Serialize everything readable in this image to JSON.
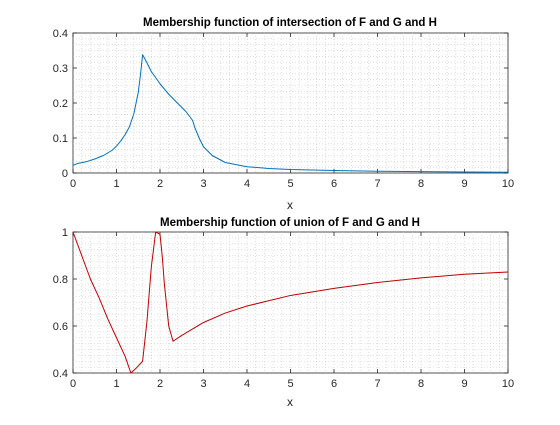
{
  "chart_data": [
    {
      "type": "line",
      "title": "Membership function of intersection of F and G and H",
      "xlabel": "x",
      "ylabel": "",
      "xlim": [
        0,
        10
      ],
      "ylim": [
        0,
        0.4
      ],
      "xticks": [
        "0",
        "1",
        "2",
        "3",
        "4",
        "5",
        "6",
        "7",
        "8",
        "9",
        "10"
      ],
      "yticks": [
        "0",
        "0.1",
        "0.2",
        "0.3",
        "0.4"
      ],
      "grid": "minor-dotted",
      "series": [
        {
          "color": "#0072bd",
          "x": [
            0,
            0.1,
            0.3,
            0.5,
            0.7,
            0.9,
            1.0,
            1.1,
            1.2,
            1.3,
            1.4,
            1.5,
            1.55,
            1.6,
            1.7,
            1.8,
            2.0,
            2.2,
            2.4,
            2.6,
            2.75,
            2.8,
            2.9,
            3.0,
            3.2,
            3.5,
            4.0,
            4.5,
            5.0,
            6.0,
            7.0,
            8.0,
            9.0,
            10.0
          ],
          "y": [
            0.022,
            0.027,
            0.032,
            0.04,
            0.05,
            0.065,
            0.077,
            0.092,
            0.11,
            0.133,
            0.17,
            0.23,
            0.28,
            0.338,
            0.315,
            0.29,
            0.255,
            0.225,
            0.2,
            0.175,
            0.15,
            0.13,
            0.1,
            0.075,
            0.05,
            0.03,
            0.018,
            0.013,
            0.01,
            0.007,
            0.005,
            0.004,
            0.003,
            0.002
          ]
        }
      ]
    },
    {
      "type": "line",
      "title": "Membership function of union of F and G and H",
      "xlabel": "x",
      "ylabel": "",
      "xlim": [
        0,
        10
      ],
      "ylim": [
        0.4,
        1
      ],
      "xticks": [
        "0",
        "1",
        "2",
        "3",
        "4",
        "5",
        "6",
        "7",
        "8",
        "9",
        "10"
      ],
      "yticks": [
        "0.4",
        "0.6",
        "0.8",
        "1"
      ],
      "grid": "minor-dotted",
      "series": [
        {
          "color": "#c00000",
          "x": [
            0,
            0.2,
            0.4,
            0.6,
            0.8,
            1.0,
            1.2,
            1.33,
            1.45,
            1.6,
            1.7,
            1.8,
            1.9,
            2.0,
            2.05,
            2.1,
            2.2,
            2.3,
            2.5,
            3.0,
            3.5,
            4.0,
            5.0,
            6.0,
            7.0,
            8.0,
            9.0,
            10.0
          ],
          "y": [
            1.0,
            0.9,
            0.8,
            0.72,
            0.63,
            0.55,
            0.47,
            0.4,
            0.42,
            0.45,
            0.62,
            0.85,
            1.0,
            0.99,
            0.9,
            0.78,
            0.6,
            0.535,
            0.56,
            0.615,
            0.655,
            0.685,
            0.73,
            0.76,
            0.785,
            0.805,
            0.82,
            0.83
          ]
        }
      ]
    }
  ]
}
